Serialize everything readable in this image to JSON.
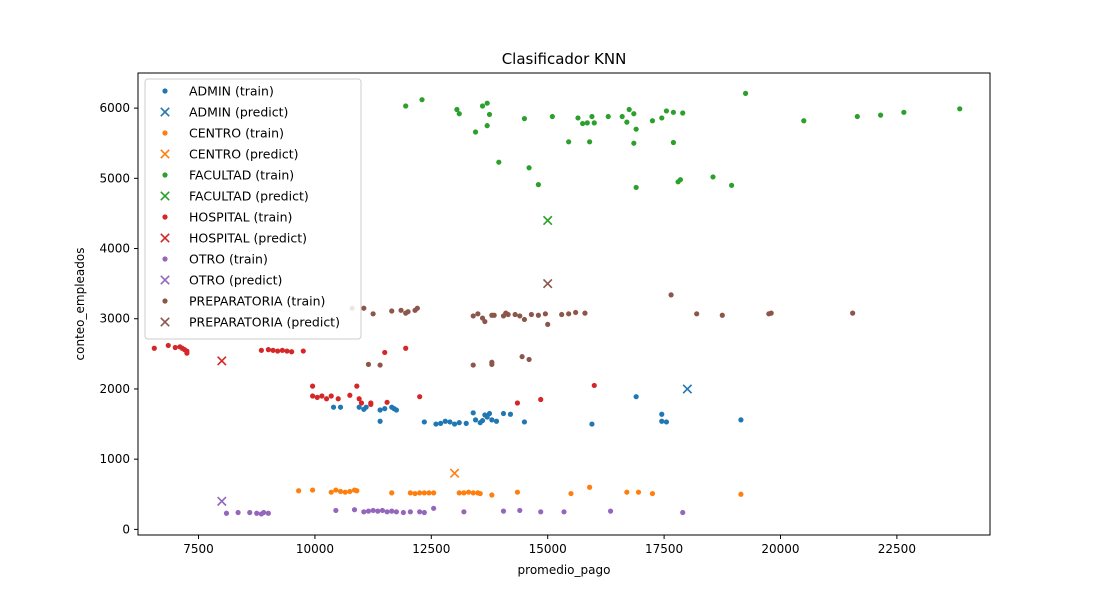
{
  "chart_data": {
    "type": "scatter",
    "title": "Clasificador KNN",
    "xlabel": "promedio_pago",
    "ylabel": "conteo_empleados",
    "xlim": [
      6200,
      24500
    ],
    "ylim": [
      -80,
      6500
    ],
    "xticks": [
      7500,
      10000,
      12500,
      15000,
      17500,
      20000,
      22500
    ],
    "yticks": [
      0,
      1000,
      2000,
      3000,
      4000,
      5000,
      6000
    ],
    "grid": false,
    "legend_position": "top-left",
    "series": [
      {
        "name": "ADMIN (train)",
        "marker": "dot",
        "color": "#1f77b4",
        "points": [
          [
            10400,
            1740
          ],
          [
            10550,
            1740
          ],
          [
            10950,
            1740
          ],
          [
            11100,
            1740
          ],
          [
            11050,
            1710
          ],
          [
            11400,
            1700
          ],
          [
            11500,
            1720
          ],
          [
            11650,
            1740
          ],
          [
            11700,
            1720
          ],
          [
            11750,
            1700
          ],
          [
            11400,
            1540
          ],
          [
            12350,
            1530
          ],
          [
            12600,
            1500
          ],
          [
            12700,
            1510
          ],
          [
            12800,
            1540
          ],
          [
            12900,
            1530
          ],
          [
            13000,
            1500
          ],
          [
            13100,
            1520
          ],
          [
            13250,
            1510
          ],
          [
            13400,
            1660
          ],
          [
            13450,
            1560
          ],
          [
            13550,
            1520
          ],
          [
            13600,
            1550
          ],
          [
            13650,
            1630
          ],
          [
            13700,
            1600
          ],
          [
            13750,
            1650
          ],
          [
            13800,
            1560
          ],
          [
            13900,
            1540
          ],
          [
            14050,
            1650
          ],
          [
            14200,
            1640
          ],
          [
            14500,
            1530
          ],
          [
            15950,
            1500
          ],
          [
            16900,
            1890
          ],
          [
            17450,
            1540
          ],
          [
            17450,
            1640
          ],
          [
            17550,
            1530
          ],
          [
            19150,
            1560
          ]
        ]
      },
      {
        "name": "ADMIN (predict)",
        "marker": "x",
        "color": "#1f77b4",
        "points": [
          [
            18000,
            2000
          ]
        ]
      },
      {
        "name": "CENTRO (train)",
        "marker": "dot",
        "color": "#ff7f0e",
        "points": [
          [
            9650,
            550
          ],
          [
            9950,
            560
          ],
          [
            10350,
            530
          ],
          [
            10450,
            560
          ],
          [
            10550,
            540
          ],
          [
            10650,
            530
          ],
          [
            10750,
            540
          ],
          [
            10850,
            560
          ],
          [
            10900,
            550
          ],
          [
            11650,
            520
          ],
          [
            12050,
            520
          ],
          [
            12150,
            510
          ],
          [
            12250,
            520
          ],
          [
            12350,
            520
          ],
          [
            12450,
            520
          ],
          [
            12550,
            520
          ],
          [
            13100,
            520
          ],
          [
            13200,
            520
          ],
          [
            13300,
            530
          ],
          [
            13400,
            520
          ],
          [
            13500,
            520
          ],
          [
            13550,
            510
          ],
          [
            13800,
            490
          ],
          [
            14350,
            530
          ],
          [
            15500,
            510
          ],
          [
            15900,
            600
          ],
          [
            16700,
            530
          ],
          [
            16950,
            530
          ],
          [
            17250,
            510
          ],
          [
            19150,
            500
          ]
        ]
      },
      {
        "name": "CENTRO (predict)",
        "marker": "x",
        "color": "#ff7f0e",
        "points": [
          [
            13000,
            800
          ]
        ]
      },
      {
        "name": "FACULTAD (train)",
        "marker": "dot",
        "color": "#2ca02c",
        "points": [
          [
            11950,
            6030
          ],
          [
            12300,
            6120
          ],
          [
            13050,
            5980
          ],
          [
            13100,
            5920
          ],
          [
            13450,
            5660
          ],
          [
            13600,
            6030
          ],
          [
            13700,
            6070
          ],
          [
            13750,
            5910
          ],
          [
            13700,
            5750
          ],
          [
            13950,
            5230
          ],
          [
            14500,
            5850
          ],
          [
            14600,
            5150
          ],
          [
            14800,
            4910
          ],
          [
            15100,
            5880
          ],
          [
            15450,
            5520
          ],
          [
            15650,
            5860
          ],
          [
            15750,
            5780
          ],
          [
            15850,
            5790
          ],
          [
            15900,
            5520
          ],
          [
            15950,
            5880
          ],
          [
            16000,
            5790
          ],
          [
            16300,
            5880
          ],
          [
            16600,
            5880
          ],
          [
            16700,
            5800
          ],
          [
            16750,
            5980
          ],
          [
            16850,
            5920
          ],
          [
            16900,
            5700
          ],
          [
            16850,
            5500
          ],
          [
            16900,
            4870
          ],
          [
            17250,
            5820
          ],
          [
            17450,
            5860
          ],
          [
            17550,
            5960
          ],
          [
            17700,
            5940
          ],
          [
            17700,
            5510
          ],
          [
            17800,
            4950
          ],
          [
            17850,
            4980
          ],
          [
            17900,
            5930
          ],
          [
            18550,
            5020
          ],
          [
            18950,
            4900
          ],
          [
            19250,
            6210
          ],
          [
            20500,
            5820
          ],
          [
            21650,
            5880
          ],
          [
            22150,
            5900
          ],
          [
            22650,
            5940
          ],
          [
            23850,
            5990
          ]
        ]
      },
      {
        "name": "FACULTAD (predict)",
        "marker": "x",
        "color": "#2ca02c",
        "points": [
          [
            15000,
            4400
          ]
        ]
      },
      {
        "name": "HOSPITAL (train)",
        "marker": "dot",
        "color": "#d62728",
        "points": [
          [
            6550,
            2580
          ],
          [
            6850,
            2620
          ],
          [
            7000,
            2590
          ],
          [
            7100,
            2600
          ],
          [
            7150,
            2580
          ],
          [
            7200,
            2560
          ],
          [
            7250,
            2540
          ],
          [
            7250,
            2510
          ],
          [
            8850,
            2550
          ],
          [
            9000,
            2560
          ],
          [
            9100,
            2550
          ],
          [
            9200,
            2540
          ],
          [
            9300,
            2550
          ],
          [
            9400,
            2540
          ],
          [
            9500,
            2530
          ],
          [
            9750,
            2540
          ],
          [
            9950,
            2040
          ],
          [
            9950,
            1900
          ],
          [
            10050,
            1880
          ],
          [
            10150,
            1900
          ],
          [
            10250,
            1860
          ],
          [
            10350,
            1900
          ],
          [
            10500,
            1860
          ],
          [
            10750,
            1910
          ],
          [
            10900,
            2040
          ],
          [
            10950,
            1860
          ],
          [
            11000,
            1800
          ],
          [
            11200,
            1780
          ],
          [
            11200,
            1800
          ],
          [
            11500,
            2520
          ],
          [
            11550,
            1810
          ],
          [
            11950,
            2580
          ],
          [
            12250,
            1890
          ],
          [
            14350,
            1800
          ],
          [
            14850,
            1850
          ],
          [
            16000,
            2050
          ]
        ]
      },
      {
        "name": "HOSPITAL (predict)",
        "marker": "x",
        "color": "#d62728",
        "points": [
          [
            8000,
            2400
          ]
        ]
      },
      {
        "name": "OTRO (train)",
        "marker": "dot",
        "color": "#9467bd",
        "points": [
          [
            8100,
            230
          ],
          [
            8350,
            240
          ],
          [
            8600,
            240
          ],
          [
            8750,
            230
          ],
          [
            8850,
            220
          ],
          [
            8900,
            240
          ],
          [
            9000,
            230
          ],
          [
            10450,
            270
          ],
          [
            10850,
            280
          ],
          [
            11050,
            250
          ],
          [
            11150,
            260
          ],
          [
            11250,
            270
          ],
          [
            11350,
            260
          ],
          [
            11450,
            270
          ],
          [
            11550,
            250
          ],
          [
            11650,
            260
          ],
          [
            11750,
            250
          ],
          [
            11900,
            240
          ],
          [
            12050,
            250
          ],
          [
            12250,
            250
          ],
          [
            12350,
            240
          ],
          [
            12550,
            300
          ],
          [
            13200,
            250
          ],
          [
            14050,
            260
          ],
          [
            14400,
            270
          ],
          [
            14850,
            250
          ],
          [
            15350,
            250
          ],
          [
            16350,
            260
          ],
          [
            17900,
            240
          ]
        ]
      },
      {
        "name": "OTRO (predict)",
        "marker": "x",
        "color": "#9467bd",
        "points": [
          [
            8000,
            400
          ]
        ]
      },
      {
        "name": "PREPARATORIA (train)",
        "marker": "dot",
        "color": "#8c564b",
        "points": [
          [
            10800,
            3150
          ],
          [
            11050,
            3150
          ],
          [
            11250,
            3070
          ],
          [
            11150,
            2350
          ],
          [
            11400,
            2340
          ],
          [
            11650,
            3110
          ],
          [
            11850,
            3120
          ],
          [
            11950,
            3080
          ],
          [
            12000,
            3100
          ],
          [
            12150,
            3120
          ],
          [
            12200,
            3150
          ],
          [
            13400,
            3040
          ],
          [
            13500,
            3070
          ],
          [
            13600,
            3010
          ],
          [
            13650,
            2960
          ],
          [
            13800,
            3050
          ],
          [
            13850,
            3050
          ],
          [
            13800,
            2380
          ],
          [
            13800,
            2350
          ],
          [
            14050,
            3040
          ],
          [
            14100,
            3080
          ],
          [
            14150,
            3060
          ],
          [
            14300,
            3060
          ],
          [
            14400,
            3040
          ],
          [
            14450,
            2460
          ],
          [
            14500,
            2990
          ],
          [
            14600,
            2420
          ],
          [
            14650,
            3060
          ],
          [
            14800,
            3050
          ],
          [
            14950,
            3070
          ],
          [
            15000,
            2920
          ],
          [
            15300,
            3060
          ],
          [
            15450,
            3070
          ],
          [
            15600,
            3090
          ],
          [
            15800,
            3080
          ],
          [
            17650,
            3340
          ],
          [
            18200,
            3070
          ],
          [
            18750,
            3050
          ],
          [
            19750,
            3070
          ],
          [
            19800,
            3080
          ],
          [
            21550,
            3080
          ],
          [
            13400,
            2340
          ]
        ]
      },
      {
        "name": "PREPARATORIA (predict)",
        "marker": "x",
        "color": "#8c564b",
        "points": [
          [
            15000,
            3500
          ]
        ]
      }
    ]
  }
}
